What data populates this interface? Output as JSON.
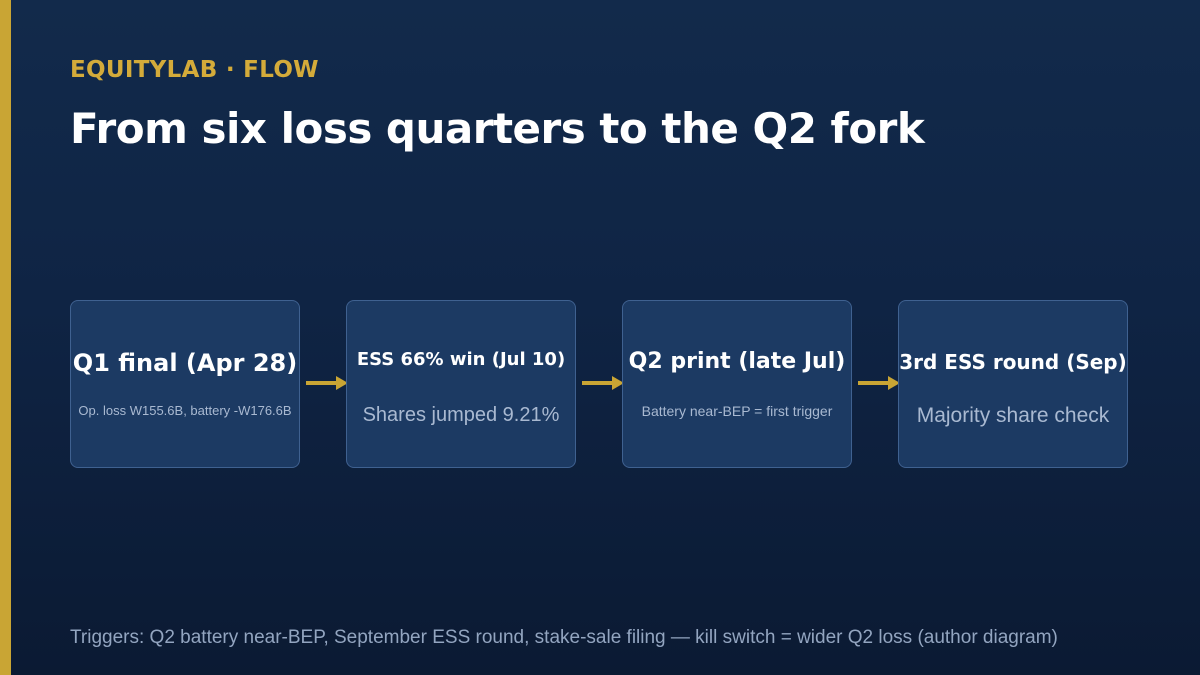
{
  "header": {
    "eyebrow": "EQUITYLAB · FLOW",
    "title": "From six loss quarters to the Q2 fork"
  },
  "flow": {
    "nodes": [
      {
        "title": "Q1 final (Apr 28)",
        "subtitle": "Op. loss W155.6B, battery -W176.6B"
      },
      {
        "title": "ESS 66% win (Jul 10)",
        "subtitle": "Shares jumped 9.21%"
      },
      {
        "title": "Q2 print (late Jul)",
        "subtitle": "Battery near-BEP = first trigger"
      },
      {
        "title": "3rd ESS round (Sep)",
        "subtitle": "Majority share check"
      }
    ],
    "arrow_icon": "arrow-right-icon"
  },
  "footnote": "Triggers: Q2 battery near-BEP, September ESS round, stake-sale filing — kill switch = wider Q2 loss (author diagram)",
  "colors": {
    "accent": "#c9a534",
    "node_fill": "#1c3a63",
    "node_border": "#3f6190",
    "background": "#0f2444"
  }
}
